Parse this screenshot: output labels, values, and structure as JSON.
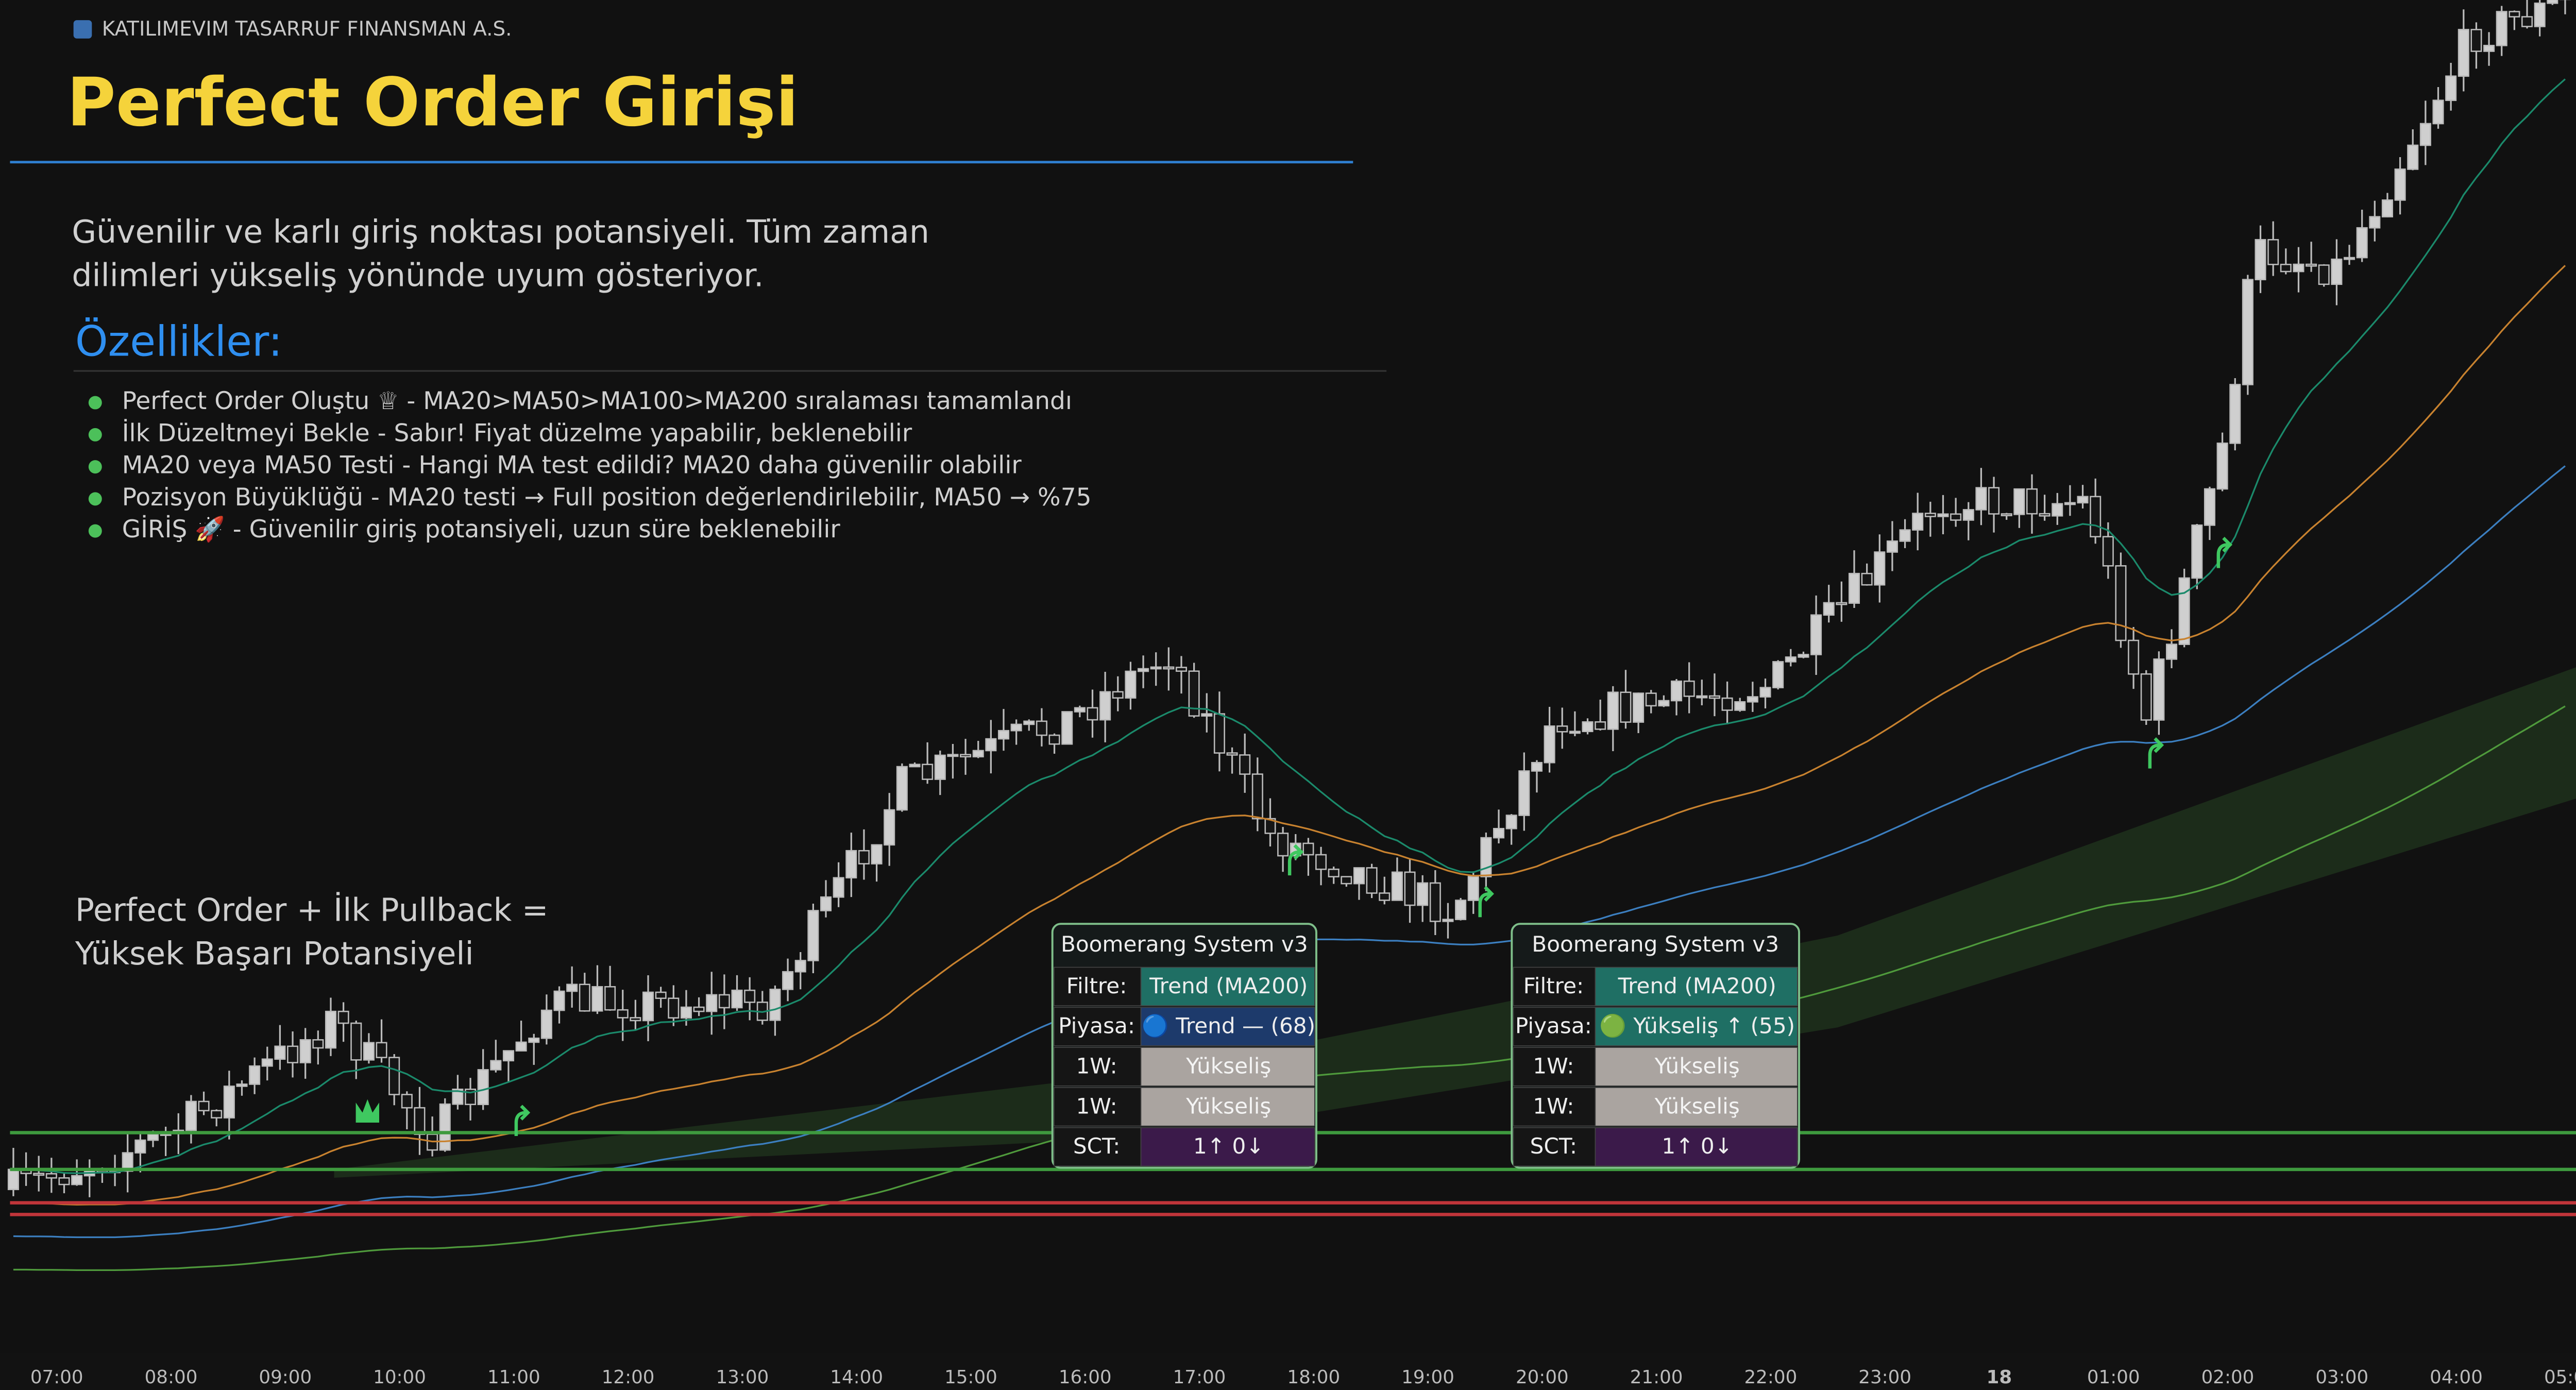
{
  "header": {
    "company": "KATILIMEVIM TASARRUF FINANSMAN A.S.",
    "title": "Perfect Order Girişi"
  },
  "description": [
    "Güvenilir ve karlı giriş noktası potansiyeli. Tüm zaman",
    "dilimleri yükseliş yönünde uyum gösteriyor."
  ],
  "section": "Özellikler:",
  "features": [
    "Perfect Order Oluştu ♕ - MA20>MA50>MA100>MA200 sıralaması tamamlandı",
    "İlk Düzeltmeyi Bekle - Sabır! Fiyat düzelme yapabilir, beklenebilir",
    "MA20 veya MA50 Testi - Hangi MA test edildi? MA20 daha güvenilir olabilir",
    "Pozisyon Büyüklüğü - MA20 testi → Full position değerlendirilebilir, MA50 → %75",
    "GİRİŞ 🚀 - Güvenilir giriş potansiyeli, uzun süre beklenebilir"
  ],
  "note": [
    "Perfect Order + İlk Pullback =",
    "Yüksek Başarı Potansiyeli"
  ],
  "panels": [
    {
      "title": "Boomerang System v3",
      "rows": [
        [
          "Filtre:",
          "Trend (MA200)"
        ],
        [
          "Piyasa:",
          "🔵 Trend — (68)"
        ],
        [
          "1W:",
          "Yükseliş"
        ],
        [
          "1W:",
          "Yükseliş"
        ],
        [
          "SCT:",
          "1↑ 0↓"
        ]
      ]
    },
    {
      "title": "Boomerang System v3",
      "rows": [
        [
          "Filtre:",
          "Trend (MA200)"
        ],
        [
          "Piyasa:",
          "🟢 Yükseliş ↑ (55)"
        ],
        [
          "1W:",
          "Yükseliş"
        ],
        [
          "1W:",
          "Yükseliş"
        ],
        [
          "SCT:",
          "1↑ 0↓"
        ]
      ]
    }
  ],
  "time_axis": [
    "07:00",
    "08:00",
    "09:00",
    "10:00",
    "11:00",
    "12:00",
    "13:00",
    "14:00",
    "15:00",
    "16:00",
    "17:00",
    "18:00",
    "19:00",
    "20:00",
    "21:00",
    "22:00",
    "23:00",
    "18",
    "01:00",
    "02:00",
    "03:00",
    "04:00",
    "05:00"
  ]
}
